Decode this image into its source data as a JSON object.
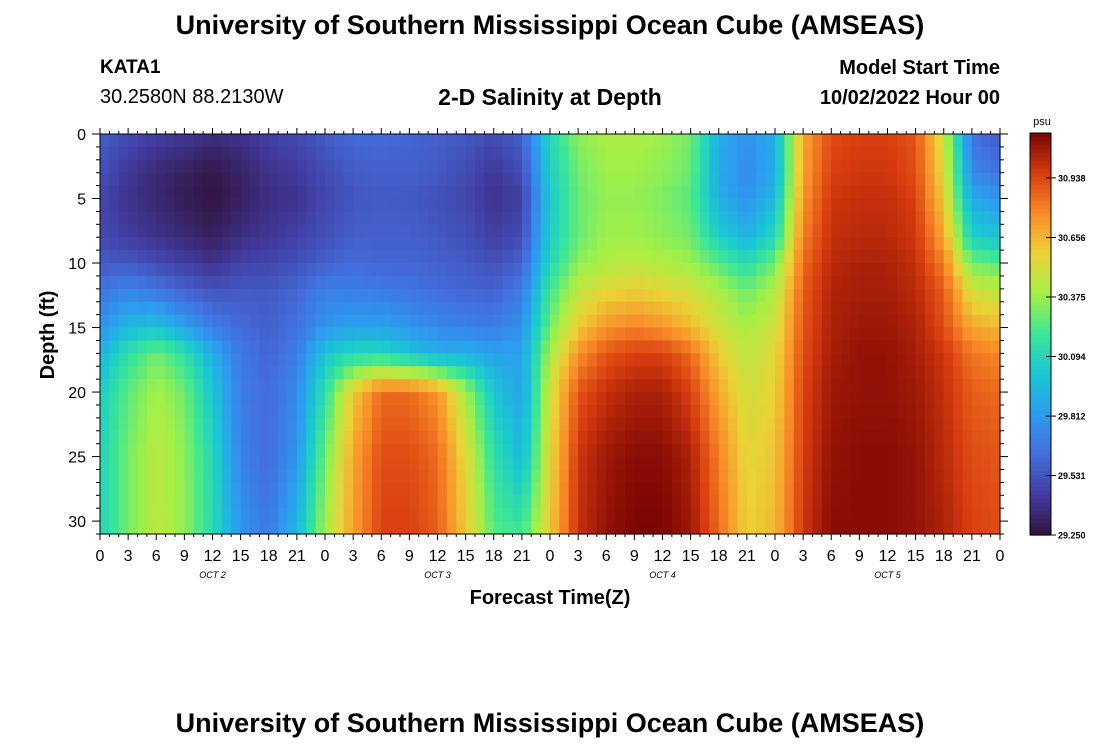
{
  "header": {
    "title": "University of Southern Mississippi Ocean Cube (AMSEAS)",
    "station_id": "KATA1",
    "location": "30.2580N  88.2130W",
    "subtitle": "2-D Salinity at Depth",
    "model_start_label": "Model Start Time",
    "model_start_value": "10/02/2022 Hour 00"
  },
  "footer": {
    "title": "University of Southern Mississippi Ocean Cube (AMSEAS)"
  },
  "chart_data": {
    "type": "heatmap",
    "title": "2-D Salinity at Depth",
    "xlabel": "Forecast Time(Z)",
    "ylabel": "Depth (ft)",
    "xlim": [
      0,
      96
    ],
    "ylim": [
      0,
      31
    ],
    "x_tick_labels": [
      "0",
      "3",
      "6",
      "9",
      "12",
      "15",
      "18",
      "21",
      "0",
      "3",
      "6",
      "9",
      "12",
      "15",
      "18",
      "21",
      "0",
      "3",
      "6",
      "9",
      "12",
      "15",
      "18",
      "21",
      "0",
      "3",
      "6",
      "9",
      "12",
      "15",
      "18",
      "21",
      "0"
    ],
    "y_tick_labels": [
      "0",
      "5",
      "10",
      "15",
      "20",
      "25",
      "30"
    ],
    "day_labels": [
      {
        "label": "OCT 2",
        "hour": 12
      },
      {
        "label": "OCT 3",
        "hour": 36
      },
      {
        "label": "OCT 4",
        "hour": 60
      },
      {
        "label": "OCT 5",
        "hour": 84
      }
    ],
    "colorbar": {
      "unit": "psu",
      "min": 29.25,
      "max": 31.15,
      "tick_labels": [
        "29.250",
        "29.531",
        "29.812",
        "30.094",
        "30.375",
        "30.656",
        "30.938"
      ],
      "tick_values": [
        29.25,
        29.531,
        29.812,
        30.094,
        30.375,
        30.656,
        30.938
      ]
    },
    "depth_profile_ft": [
      0,
      3,
      5,
      8,
      10,
      12,
      15,
      17,
      20,
      25,
      31
    ],
    "salinity_psu_by_hour": [
      {
        "hour": 0,
        "values": [
          29.58,
          29.52,
          29.48,
          29.5,
          29.56,
          29.66,
          29.78,
          29.92,
          30.04,
          30.08,
          30.08
        ]
      },
      {
        "hour": 3,
        "values": [
          29.5,
          29.42,
          29.4,
          29.44,
          29.55,
          29.72,
          29.95,
          30.15,
          30.26,
          30.3,
          30.3
        ]
      },
      {
        "hour": 6,
        "values": [
          29.45,
          29.36,
          29.35,
          29.4,
          29.5,
          29.65,
          30.0,
          30.3,
          30.4,
          30.45,
          30.45
        ]
      },
      {
        "hour": 9,
        "values": [
          29.42,
          29.32,
          29.3,
          29.36,
          29.45,
          29.58,
          29.85,
          30.15,
          30.3,
          30.35,
          30.36
        ]
      },
      {
        "hour": 12,
        "values": [
          29.38,
          29.28,
          29.26,
          29.32,
          29.4,
          29.52,
          29.7,
          29.9,
          30.0,
          30.1,
          30.12
        ]
      },
      {
        "hour": 15,
        "values": [
          29.4,
          29.33,
          29.32,
          29.38,
          29.46,
          29.55,
          29.62,
          29.68,
          29.7,
          29.72,
          29.8
        ]
      },
      {
        "hour": 18,
        "values": [
          29.46,
          29.4,
          29.38,
          29.42,
          29.48,
          29.55,
          29.58,
          29.6,
          29.62,
          29.62,
          29.68
        ]
      },
      {
        "hour": 21,
        "values": [
          29.5,
          29.43,
          29.4,
          29.46,
          29.52,
          29.6,
          29.65,
          29.7,
          29.75,
          29.8,
          29.95
        ]
      },
      {
        "hour": 24,
        "values": [
          29.56,
          29.5,
          29.48,
          29.52,
          29.58,
          29.7,
          29.8,
          30.0,
          30.15,
          30.3,
          30.4
        ]
      },
      {
        "hour": 27,
        "values": [
          29.62,
          29.56,
          29.54,
          29.58,
          29.62,
          29.7,
          29.85,
          30.1,
          30.6,
          30.7,
          30.72
        ]
      },
      {
        "hour": 30,
        "values": [
          29.62,
          29.58,
          29.56,
          29.58,
          29.6,
          29.68,
          29.85,
          30.1,
          30.85,
          30.92,
          30.95
        ]
      },
      {
        "hour": 33,
        "values": [
          29.6,
          29.58,
          29.55,
          29.58,
          29.6,
          29.66,
          29.8,
          30.0,
          30.85,
          30.92,
          30.95
        ]
      },
      {
        "hour": 36,
        "values": [
          29.58,
          29.55,
          29.52,
          29.55,
          29.58,
          29.62,
          29.75,
          29.9,
          30.75,
          30.85,
          30.88
        ]
      },
      {
        "hour": 39,
        "values": [
          29.55,
          29.5,
          29.48,
          29.52,
          29.56,
          29.6,
          29.72,
          29.9,
          30.4,
          30.55,
          30.6
        ]
      },
      {
        "hour": 42,
        "values": [
          29.5,
          29.42,
          29.4,
          29.45,
          29.52,
          29.58,
          29.7,
          29.85,
          30.0,
          30.15,
          30.25
        ]
      },
      {
        "hour": 45,
        "values": [
          29.58,
          29.5,
          29.45,
          29.5,
          29.58,
          29.68,
          29.78,
          29.85,
          29.85,
          29.95,
          30.2
        ]
      },
      {
        "hour": 48,
        "values": [
          30.1,
          30.05,
          30.02,
          30.05,
          30.1,
          30.2,
          30.3,
          30.4,
          30.5,
          30.55,
          30.6
        ]
      },
      {
        "hour": 51,
        "values": [
          30.35,
          30.3,
          30.28,
          30.28,
          30.35,
          30.45,
          30.6,
          30.75,
          30.9,
          30.98,
          31.0
        ]
      },
      {
        "hour": 54,
        "values": [
          30.4,
          30.38,
          30.36,
          30.38,
          30.42,
          30.55,
          30.75,
          30.9,
          31.0,
          31.08,
          31.1
        ]
      },
      {
        "hour": 57,
        "values": [
          30.4,
          30.38,
          30.36,
          30.38,
          30.45,
          30.58,
          30.8,
          30.95,
          31.05,
          31.12,
          31.15
        ]
      },
      {
        "hour": 60,
        "values": [
          30.38,
          30.35,
          30.32,
          30.35,
          30.42,
          30.55,
          30.75,
          30.95,
          31.05,
          31.12,
          31.15
        ]
      },
      {
        "hour": 63,
        "values": [
          30.3,
          30.28,
          30.25,
          30.3,
          30.38,
          30.5,
          30.65,
          30.85,
          30.95,
          31.05,
          31.08
        ]
      },
      {
        "hour": 66,
        "values": [
          29.9,
          29.88,
          29.9,
          30.05,
          30.25,
          30.4,
          30.5,
          30.6,
          30.7,
          30.8,
          30.85
        ]
      },
      {
        "hour": 69,
        "values": [
          29.78,
          29.75,
          29.78,
          29.92,
          30.12,
          30.28,
          30.4,
          30.45,
          30.5,
          30.55,
          30.58
        ]
      },
      {
        "hour": 72,
        "values": [
          29.9,
          29.88,
          29.95,
          30.1,
          30.3,
          30.42,
          30.5,
          30.55,
          30.58,
          30.62,
          30.65
        ]
      },
      {
        "hour": 75,
        "values": [
          30.7,
          30.72,
          30.75,
          30.8,
          30.85,
          30.88,
          30.9,
          30.92,
          30.94,
          30.96,
          30.98
        ]
      },
      {
        "hour": 78,
        "values": [
          30.92,
          30.95,
          30.98,
          31.0,
          31.02,
          31.04,
          31.05,
          31.06,
          31.08,
          31.1,
          31.12
        ]
      },
      {
        "hour": 81,
        "values": [
          30.95,
          30.98,
          31.0,
          31.02,
          31.05,
          31.06,
          31.08,
          31.1,
          31.1,
          31.12,
          31.12
        ]
      },
      {
        "hour": 84,
        "values": [
          30.95,
          30.98,
          31.0,
          31.02,
          31.05,
          31.06,
          31.08,
          31.1,
          31.1,
          31.12,
          31.12
        ]
      },
      {
        "hour": 87,
        "values": [
          30.9,
          30.92,
          30.95,
          30.98,
          31.0,
          31.02,
          31.05,
          31.06,
          31.08,
          31.1,
          31.1
        ]
      },
      {
        "hour": 90,
        "values": [
          30.5,
          30.55,
          30.6,
          30.7,
          30.8,
          30.88,
          30.92,
          30.98,
          31.0,
          31.02,
          31.05
        ]
      },
      {
        "hour": 93,
        "values": [
          29.65,
          29.75,
          29.88,
          30.05,
          30.3,
          30.5,
          30.7,
          30.82,
          30.88,
          30.92,
          30.95
        ]
      },
      {
        "hour": 96,
        "values": [
          29.55,
          29.65,
          29.8,
          30.0,
          30.25,
          30.45,
          30.65,
          30.78,
          30.85,
          30.9,
          30.92
        ]
      }
    ]
  }
}
